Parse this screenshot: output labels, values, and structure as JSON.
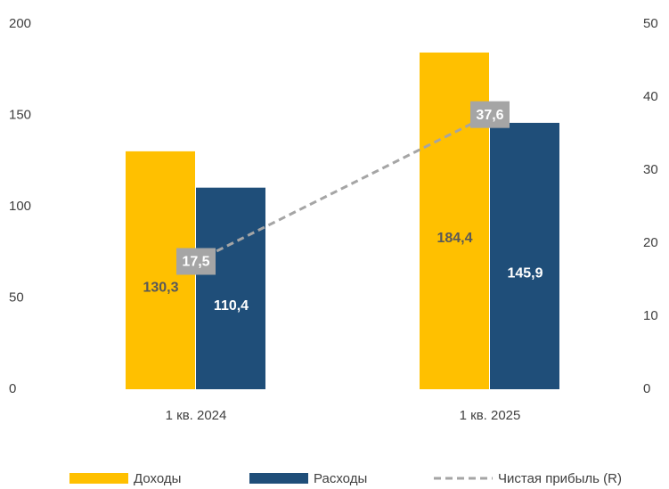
{
  "chart_data": {
    "type": "bar",
    "categories": [
      "1 кв. 2024",
      "1 кв. 2025"
    ],
    "series": [
      {
        "name": "Доходы",
        "color": "#FFC000",
        "values": [
          130.3,
          184.4
        ],
        "value_labels": [
          "130,3",
          "184,4"
        ]
      },
      {
        "name": "Расходы",
        "color": "#1F4E79",
        "values": [
          110.4,
          145.9
        ],
        "value_labels": [
          "110,4",
          "145,9"
        ]
      },
      {
        "name": "Чистая прибыль (R)",
        "color": "#A5A5A5",
        "type": "line",
        "axis": "y2",
        "values": [
          17.5,
          37.6
        ],
        "value_labels": [
          "17,5",
          "37,6"
        ]
      }
    ],
    "ylim": [
      0,
      200
    ],
    "yticks": [
      0,
      50,
      100,
      150,
      200
    ],
    "y2lim": [
      0,
      50
    ],
    "y2ticks": [
      0,
      10,
      20,
      30,
      40,
      50
    ],
    "grid": false,
    "legend": "bottom"
  }
}
